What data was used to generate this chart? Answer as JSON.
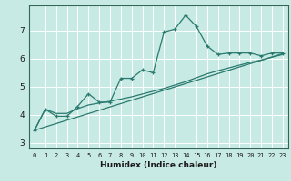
{
  "title": "",
  "xlabel": "Humidex (Indice chaleur)",
  "bg_color": "#c8eae5",
  "line_color": "#2a7a6e",
  "grid_color": "#ffffff",
  "xlim": [
    -0.5,
    23.5
  ],
  "ylim": [
    2.8,
    7.9
  ],
  "yticks": [
    3,
    4,
    5,
    6,
    7
  ],
  "xticks": [
    0,
    1,
    2,
    3,
    4,
    5,
    6,
    7,
    8,
    9,
    10,
    11,
    12,
    13,
    14,
    15,
    16,
    17,
    18,
    19,
    20,
    21,
    22,
    23
  ],
  "main_x": [
    0,
    1,
    2,
    3,
    4,
    5,
    6,
    7,
    8,
    9,
    10,
    11,
    12,
    13,
    14,
    15,
    16,
    17,
    18,
    19,
    20,
    21,
    22,
    23
  ],
  "main_y": [
    3.45,
    4.2,
    3.95,
    3.95,
    4.3,
    4.75,
    4.45,
    4.45,
    5.3,
    5.3,
    5.6,
    5.5,
    6.95,
    7.05,
    7.55,
    7.15,
    6.45,
    6.15,
    6.2,
    6.2,
    6.2,
    6.1,
    6.2,
    6.2
  ],
  "line2_x": [
    0,
    1,
    2,
    3,
    4,
    5,
    6,
    7,
    8,
    9,
    10,
    11,
    12,
    13,
    14,
    15,
    16,
    17,
    18,
    19,
    20,
    21,
    22,
    23
  ],
  "line2_y": [
    3.45,
    4.2,
    4.05,
    4.05,
    4.22,
    4.35,
    4.42,
    4.48,
    4.56,
    4.64,
    4.74,
    4.84,
    4.94,
    5.06,
    5.18,
    5.32,
    5.46,
    5.57,
    5.67,
    5.77,
    5.87,
    5.95,
    6.05,
    6.15
  ],
  "line3_x": [
    0,
    23
  ],
  "line3_y": [
    3.45,
    6.18
  ],
  "tick_color": "#1a1a1a",
  "spine_color": "#336655"
}
